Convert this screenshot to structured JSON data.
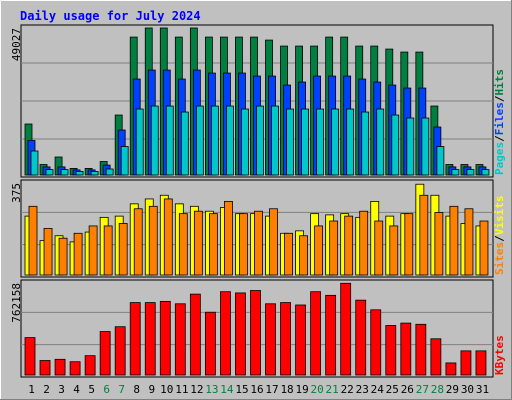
{
  "chart_data": {
    "type": "bar",
    "title": "Daily usage for July 2024",
    "categories": [
      "1",
      "2",
      "3",
      "4",
      "5",
      "6",
      "7",
      "8",
      "9",
      "10",
      "11",
      "12",
      "13",
      "14",
      "15",
      "16",
      "17",
      "18",
      "19",
      "20",
      "21",
      "22",
      "23",
      "24",
      "25",
      "26",
      "27",
      "28",
      "29",
      "30",
      "31"
    ],
    "weekend_days": [
      "6",
      "7",
      "13",
      "14",
      "20",
      "21",
      "27",
      "28"
    ],
    "panels": [
      {
        "name": "hits-files-pages",
        "max_label": "49027",
        "ylim": [
          0,
          49027
        ],
        "legend": [
          {
            "text": "Pages",
            "color": "#00c8c8"
          },
          {
            "text": "/",
            "color": "#000000"
          },
          {
            "text": "Files",
            "color": "#0040ff"
          },
          {
            "text": "/",
            "color": "#000000"
          },
          {
            "text": "Hits",
            "color": "#008040"
          }
        ],
        "series": [
          {
            "name": "Hits",
            "color": "#008040",
            "values": [
              17000,
              3500,
              6000,
              2200,
              2200,
              4500,
              20000,
              46000,
              49027,
              49027,
              46000,
              49027,
              46000,
              46000,
              46000,
              46000,
              45000,
              43000,
              43000,
              43000,
              46000,
              46000,
              43000,
              43000,
              42000,
              41000,
              41000,
              23000,
              3500,
              3500,
              3500
            ]
          },
          {
            "name": "Files",
            "color": "#0040ff",
            "values": [
              11500,
              2700,
              2700,
              1700,
              1700,
              3300,
              15000,
              32000,
              35000,
              35000,
              32000,
              35000,
              34000,
              34000,
              34000,
              33000,
              33000,
              30000,
              31000,
              33000,
              33000,
              33000,
              32000,
              31000,
              30000,
              29000,
              29000,
              16000,
              2700,
              2700,
              2700
            ]
          },
          {
            "name": "Pages",
            "color": "#00c8c8",
            "values": [
              8000,
              1800,
              1800,
              1200,
              1200,
              2000,
              9500,
              22000,
              23000,
              23000,
              21000,
              23000,
              23000,
              23000,
              22000,
              23000,
              23000,
              22000,
              22000,
              22000,
              22000,
              22000,
              21000,
              22000,
              20000,
              19000,
              19000,
              9500,
              1800,
              1800,
              1800
            ]
          }
        ]
      },
      {
        "name": "visits-sites",
        "max_label": "375",
        "ylim": [
          0,
          375
        ],
        "legend": [
          {
            "text": "Sites",
            "color": "#ff8000"
          },
          {
            "text": "/",
            "color": "#000000"
          },
          {
            "text": "Visits",
            "color": "#ffff00"
          }
        ],
        "series": [
          {
            "name": "Visits",
            "color": "#ffff00",
            "values": [
              240,
              140,
              160,
              135,
              175,
              235,
              240,
              290,
              310,
              325,
              290,
              280,
              260,
              275,
              250,
              250,
              240,
              170,
              180,
              250,
              245,
              250,
              235,
              300,
              240,
              250,
              370,
              325,
              240,
              210,
              200
            ]
          },
          {
            "name": "Sites",
            "color": "#ff8000",
            "values": [
              280,
              190,
              150,
              170,
              200,
              200,
              210,
              270,
              280,
              310,
              250,
              260,
              250,
              300,
              250,
              260,
              270,
              170,
              160,
              200,
              220,
              240,
              260,
              220,
              200,
              250,
              325,
              255,
              280,
              270,
              220
            ]
          }
        ]
      },
      {
        "name": "kbytes",
        "max_label": "762158",
        "ylim": [
          0,
          762158
        ],
        "legend": [
          {
            "text": "KBytes",
            "color": "#ff0000"
          }
        ],
        "series": [
          {
            "name": "KBytes",
            "color": "#ff0000",
            "values": [
              310000,
              120000,
              130000,
              110000,
              160000,
              360000,
              400000,
              600000,
              600000,
              610000,
              590000,
              670000,
              520000,
              690000,
              680000,
              700000,
              590000,
              600000,
              580000,
              690000,
              660000,
              760000,
              620000,
              540000,
              410000,
              430000,
              420000,
              300000,
              100000,
              200000,
              200000
            ]
          }
        ]
      }
    ]
  }
}
